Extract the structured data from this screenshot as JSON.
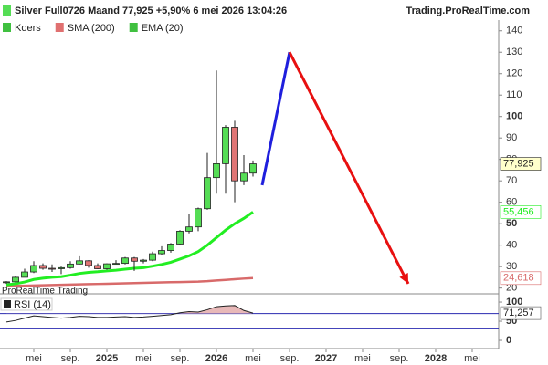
{
  "chart_data": {
    "type": "candlestick",
    "title": "Silver Full0726 Maand 77,925 +5,90% 6 mei 2026 13:04:26",
    "source": "Trading.ProRealTime.com",
    "watermark": "ProRealTime Trading",
    "legend": [
      "Koers",
      "SMA (200)",
      "EMA (20)"
    ],
    "legend_colors": [
      "#40c040",
      "#e07070",
      "#40c040"
    ],
    "candles": {
      "x": [
        "2024-02",
        "2024-03",
        "2024-04",
        "2024-05",
        "2024-06",
        "2024-07",
        "2024-08",
        "2024-09",
        "2024-10",
        "2024-11",
        "2024-12",
        "2025-01",
        "2025-02",
        "2025-03",
        "2025-04",
        "2025-05",
        "2025-06",
        "2025-07",
        "2025-08",
        "2025-09",
        "2025-10",
        "2025-11",
        "2025-12",
        "2026-01",
        "2026-02",
        "2026-03",
        "2026-04",
        "2026-05"
      ],
      "open": [
        22.5,
        22.9,
        25.0,
        27.5,
        30.5,
        29.2,
        29.0,
        29.5,
        31.2,
        32.7,
        30.5,
        29.0,
        31.3,
        31.5,
        34.0,
        32.5,
        33.0,
        36.0,
        37.5,
        40.5,
        46.5,
        48.5,
        57.0,
        71.5,
        78.0,
        95.0,
        70.0,
        73.6
      ],
      "high": [
        23.2,
        25.4,
        29.0,
        32.5,
        31.5,
        31.0,
        30.0,
        32.5,
        34.8,
        33.0,
        31.5,
        31.5,
        33.0,
        34.5,
        34.5,
        33.5,
        37.0,
        39.5,
        41.0,
        47.0,
        54.5,
        57.5,
        83.0,
        121.5,
        96.0,
        98.0,
        82.0,
        79.5
      ],
      "low": [
        22.0,
        22.6,
        25.0,
        27.0,
        28.5,
        27.5,
        26.5,
        29.0,
        31.0,
        29.5,
        28.8,
        28.5,
        31.0,
        31.0,
        28.0,
        31.5,
        32.5,
        35.5,
        36.5,
        40.0,
        45.5,
        46.5,
        56.5,
        64.0,
        64.0,
        60.0,
        68.0,
        72.0
      ],
      "close": [
        22.9,
        25.0,
        27.5,
        30.5,
        29.2,
        29.0,
        29.5,
        31.2,
        32.7,
        30.5,
        29.0,
        31.3,
        31.5,
        34.0,
        32.5,
        33.0,
        36.0,
        37.5,
        40.5,
        46.5,
        48.5,
        57.0,
        71.5,
        78.0,
        95.0,
        70.0,
        73.6,
        77.925
      ],
      "up_color": "#55dd55",
      "down_color": "#e07575",
      "last_label": "77,925"
    },
    "series": [
      {
        "name": "SMA (200)",
        "color": "#d86a6a",
        "values": [
          20.9,
          21.0,
          21.1,
          21.2,
          21.3,
          21.4,
          21.5,
          21.6,
          21.7,
          21.8,
          21.9,
          22.0,
          22.1,
          22.2,
          22.3,
          22.4,
          22.5,
          22.6,
          22.7,
          22.8,
          22.9,
          23.0,
          23.2,
          23.5,
          23.8,
          24.1,
          24.4,
          24.618
        ],
        "value_label": "24,618"
      },
      {
        "name": "EMA (20)",
        "color": "#22ee22",
        "values": [
          21.5,
          22.0,
          22.8,
          24.0,
          24.6,
          25.0,
          25.3,
          26.0,
          26.8,
          27.3,
          27.6,
          28.0,
          28.3,
          28.8,
          29.2,
          29.5,
          30.2,
          31.0,
          32.0,
          33.5,
          35.0,
          37.0,
          40.0,
          43.5,
          47.0,
          50.0,
          52.5,
          55.456
        ],
        "value_label": "55,456"
      }
    ],
    "annotations": [
      {
        "color": "#1f1fdd",
        "points": [
          [
            "2026-06",
            68
          ],
          [
            "2026-09",
            130
          ]
        ]
      },
      {
        "color": "#e81010",
        "arrow": true,
        "points": [
          [
            "2026-09",
            130
          ],
          [
            "2027-10",
            22
          ]
        ]
      }
    ],
    "ylim": [
      19,
      145
    ],
    "yticks": [
      20,
      30,
      40,
      50,
      60,
      70,
      80,
      90,
      100,
      110,
      120,
      130,
      140
    ],
    "xticks": [
      {
        "value": "2024-05",
        "label": "mei"
      },
      {
        "value": "2024-09",
        "label": "sep."
      },
      {
        "value": "2025-01",
        "label": "2025"
      },
      {
        "value": "2025-05",
        "label": "mei"
      },
      {
        "value": "2025-09",
        "label": "sep."
      },
      {
        "value": "2026-01",
        "label": "2026"
      },
      {
        "value": "2026-05",
        "label": "mei"
      },
      {
        "value": "2026-09",
        "label": "sep."
      },
      {
        "value": "2027-01",
        "label": "2027"
      },
      {
        "value": "2027-05",
        "label": "mei"
      },
      {
        "value": "2027-09",
        "label": "sep."
      },
      {
        "value": "2028-01",
        "label": "2028"
      },
      {
        "value": "2028-05",
        "label": "mei"
      }
    ],
    "rsi": {
      "name": "RSI (14)",
      "color": "#222222",
      "fill": "#e8b8b8",
      "values": [
        48,
        52,
        58,
        64,
        62,
        60,
        58,
        60,
        63,
        62,
        60,
        60,
        61,
        62,
        60,
        61,
        63,
        65,
        67,
        72,
        75,
        74,
        80,
        88,
        90,
        91,
        78,
        71.257
      ],
      "value_label": "71,257",
      "levels": [
        70,
        30
      ],
      "level_color": "#2a2ab0",
      "ylim": [
        -19,
        112
      ],
      "yticks": [
        0,
        50,
        100
      ]
    }
  }
}
